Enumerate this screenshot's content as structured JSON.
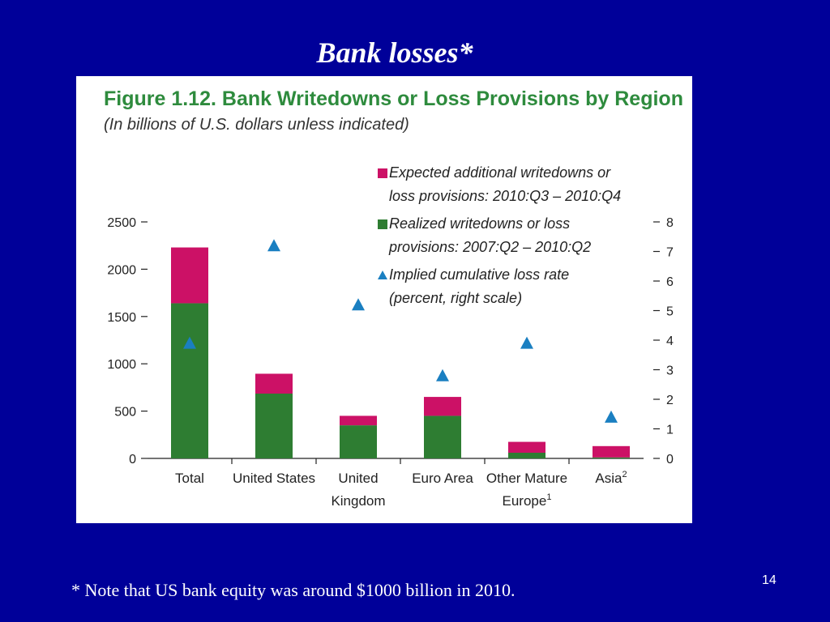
{
  "slide": {
    "title": "Bank losses*",
    "note": "* Note that US bank equity was around $1000 billion in 2010.",
    "page_number": "14"
  },
  "colors": {
    "background": "#000099",
    "expected": "#cc1166",
    "realized": "#2e7d32",
    "rate": "#1a7fc1",
    "title_green": "#2e8b3d"
  },
  "chart_data": {
    "type": "bar",
    "title": "Figure 1.12. Bank Writedowns or Loss Provisions by Region",
    "subtitle": "(In billions of U.S. dollars unless indicated)",
    "categories": [
      {
        "line1": "Total",
        "line2": "",
        "sup": ""
      },
      {
        "line1": "United States",
        "line2": "",
        "sup": ""
      },
      {
        "line1": "United",
        "line2": "Kingdom",
        "sup": ""
      },
      {
        "line1": "Euro Area",
        "line2": "",
        "sup": ""
      },
      {
        "line1": "Other Mature",
        "line2": "Europe",
        "sup": "1"
      },
      {
        "line1": "Asia",
        "line2": "",
        "sup": "2"
      }
    ],
    "series": [
      {
        "name": "Realized writedowns or loss provisions: 2007:Q2 – 2010:Q2",
        "legend_lines": [
          "Realized writedowns or loss",
          "provisions: 2007:Q2 – 2010:Q2"
        ],
        "type": "bar",
        "stack": "base",
        "values": [
          1640,
          685,
          350,
          450,
          60,
          10
        ]
      },
      {
        "name": "Expected additional writedowns or loss provisions: 2010:Q3 – 2010:Q4",
        "legend_lines": [
          "Expected additional writedowns or",
          "loss provisions: 2010:Q3 – 2010:Q4"
        ],
        "type": "bar",
        "stack": "top",
        "values": [
          590,
          210,
          100,
          200,
          115,
          120
        ]
      },
      {
        "name": "Implied cumulative loss rate (percent, right scale)",
        "legend_lines": [
          "Implied cumulative loss rate",
          "(percent, right scale)"
        ],
        "type": "marker",
        "axis": "right",
        "values": [
          3.9,
          7.2,
          5.2,
          2.8,
          3.9,
          1.4
        ]
      }
    ],
    "legend_order": [
      1,
      0,
      2
    ],
    "y_left": {
      "ticks": [
        "2500",
        "2000",
        "1500",
        "1000",
        "500",
        "0"
      ],
      "range": [
        0,
        2500
      ]
    },
    "y_right": {
      "ticks": [
        "8",
        "7",
        "6",
        "5",
        "4",
        "3",
        "2",
        "1",
        "0"
      ],
      "range": [
        0,
        8
      ]
    },
    "legend_position": "top-right"
  }
}
